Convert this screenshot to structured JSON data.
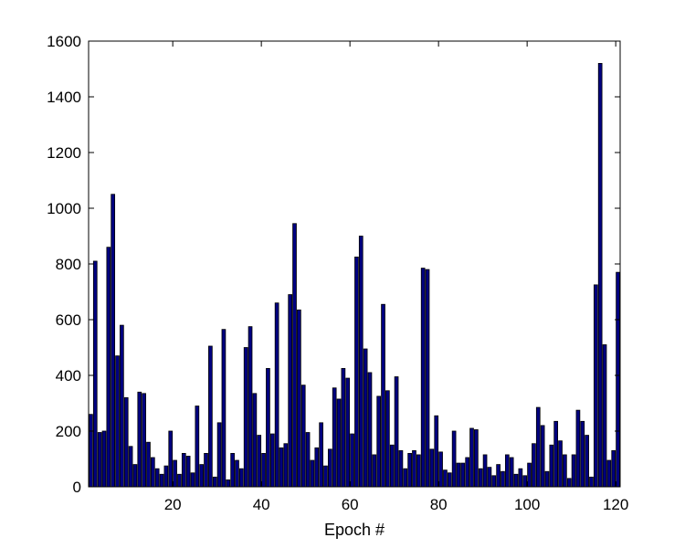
{
  "chart_data": {
    "type": "bar",
    "title": "",
    "xlabel": "Epoch #",
    "ylabel": "",
    "xlim": [
      1,
      121
    ],
    "ylim": [
      0,
      1600
    ],
    "xticks": [
      20,
      40,
      60,
      80,
      100,
      120
    ],
    "yticks": [
      0,
      200,
      400,
      600,
      800,
      1000,
      1200,
      1400,
      1600
    ],
    "grid": false,
    "legend": "none",
    "bar_color": "#000080",
    "bar_edge_color": "#000000",
    "x": [
      1,
      2,
      3,
      4,
      5,
      6,
      7,
      8,
      9,
      10,
      11,
      12,
      13,
      14,
      15,
      16,
      17,
      18,
      19,
      20,
      21,
      22,
      23,
      24,
      25,
      26,
      27,
      28,
      29,
      30,
      31,
      32,
      33,
      34,
      35,
      36,
      37,
      38,
      39,
      40,
      41,
      42,
      43,
      44,
      45,
      46,
      47,
      48,
      49,
      50,
      51,
      52,
      53,
      54,
      55,
      56,
      57,
      58,
      59,
      60,
      61,
      62,
      63,
      64,
      65,
      66,
      67,
      68,
      69,
      70,
      71,
      72,
      73,
      74,
      75,
      76,
      77,
      78,
      79,
      80,
      81,
      82,
      83,
      84,
      85,
      86,
      87,
      88,
      89,
      90,
      91,
      92,
      93,
      94,
      95,
      96,
      97,
      98,
      99,
      100,
      101,
      102,
      103,
      104,
      105,
      106,
      107,
      108,
      109,
      110,
      111,
      112,
      113,
      114,
      115,
      116,
      117,
      118,
      119,
      120
    ],
    "values": [
      260,
      810,
      195,
      200,
      860,
      1050,
      470,
      580,
      320,
      145,
      80,
      340,
      335,
      160,
      105,
      65,
      45,
      75,
      200,
      95,
      45,
      120,
      110,
      50,
      290,
      80,
      120,
      505,
      35,
      230,
      565,
      25,
      120,
      95,
      65,
      500,
      575,
      335,
      185,
      120,
      425,
      190,
      660,
      140,
      155,
      690,
      945,
      635,
      365,
      195,
      95,
      140,
      230,
      75,
      135,
      355,
      315,
      425,
      390,
      190,
      825,
      900,
      495,
      410,
      115,
      325,
      655,
      345,
      150,
      395,
      130,
      65,
      120,
      130,
      115,
      785,
      780,
      135,
      255,
      125,
      60,
      50,
      200,
      85,
      85,
      105,
      210,
      205,
      65,
      115,
      70,
      40,
      80,
      55,
      115,
      105,
      45,
      65,
      40,
      85,
      155,
      285,
      220,
      55,
      150,
      235,
      165,
      115,
      30,
      115,
      275,
      235,
      185,
      35,
      725,
      1520,
      510,
      95,
      130,
      770
    ]
  }
}
